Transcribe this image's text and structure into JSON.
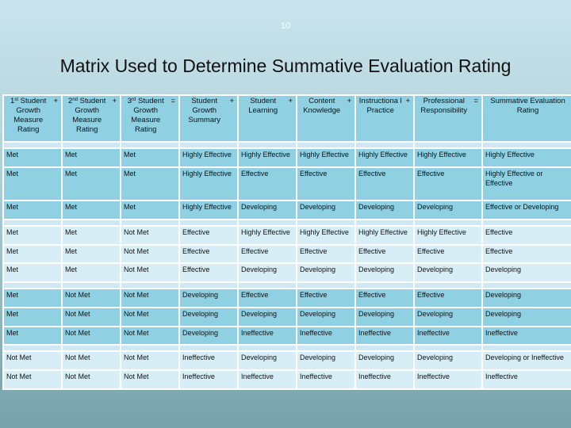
{
  "slide": {
    "number": "10",
    "title": "Matrix Used to Determine Summative Evaluation Rating"
  },
  "headers": [
    {
      "pre": "1",
      "sup": "st",
      "post": " Student Growth Measure Rating",
      "op": "+"
    },
    {
      "pre": "2",
      "sup": "nd",
      "post": " Student Growth Measure Rating",
      "op": "+"
    },
    {
      "pre": "3",
      "sup": "rd",
      "post": " Student Growth Measure Rating",
      "op": "="
    },
    {
      "pre": "Student Growth Summary",
      "sup": "",
      "post": "",
      "op": "+"
    },
    {
      "pre": "Student Learning",
      "sup": "",
      "post": "",
      "op": "+"
    },
    {
      "pre": "Content Knowledge",
      "sup": "",
      "post": "",
      "op": "+"
    },
    {
      "pre": "Instructiona l Practice",
      "sup": "",
      "post": "",
      "op": "+"
    },
    {
      "pre": "Professional Responsibility",
      "sup": "",
      "post": "",
      "op": "="
    },
    {
      "pre": "Summative Evaluation Rating",
      "sup": "",
      "post": "",
      "op": ""
    }
  ],
  "rows": [
    {
      "sep": true
    },
    {
      "shade": "dk",
      "cells": [
        "Met",
        "Met",
        "Met",
        "Highly Effective",
        "Highly Effective",
        "Highly Effective",
        "Highly Effective",
        "Highly Effective",
        "Highly Effective"
      ]
    },
    {
      "shade": "dk",
      "cells": [
        "Met",
        "Met",
        "Met",
        "Highly Effective",
        "Effective",
        "Effective",
        "Effective",
        "Effective",
        "Highly Effective or Effective"
      ]
    },
    {
      "shade": "dk",
      "cells": [
        "Met",
        "Met",
        "Met",
        "Highly Effective",
        "Developing",
        "Developing",
        "Developing",
        "Developing",
        "Effective or Developing"
      ]
    },
    {
      "sep": true
    },
    {
      "shade": "lt",
      "cells": [
        "Met",
        "Met",
        "Not Met",
        "Effective",
        "Highly Effective",
        "Highly Effective",
        "Highly Effective",
        "Highly Effective",
        "Effective"
      ]
    },
    {
      "shade": "lt",
      "cells": [
        "Met",
        "Met",
        "Not Met",
        "Effective",
        "Effective",
        "Effective",
        "Effective",
        "Effective",
        "Effective"
      ]
    },
    {
      "shade": "lt",
      "cells": [
        "Met",
        "Met",
        "Not Met",
        "Effective",
        "Developing",
        "Developing",
        "Developing",
        "Developing",
        "Developing"
      ]
    },
    {
      "sep": true
    },
    {
      "shade": "dk",
      "cells": [
        "Met",
        "Not Met",
        "Not Met",
        "Developing",
        "Effective",
        "Effective",
        "Effective",
        "Effective",
        "Developing"
      ]
    },
    {
      "shade": "dk",
      "cells": [
        "Met",
        "Not Met",
        "Not Met",
        "Developing",
        "Developing",
        "Developing",
        "Developing",
        "Developing",
        "Developing"
      ]
    },
    {
      "shade": "dk",
      "cells": [
        "Met",
        "Not Met",
        "Not Met",
        "Developing",
        "Ineffective",
        "Ineffective",
        "Ineffective",
        "Ineffective",
        "Ineffective"
      ]
    },
    {
      "sep": true
    },
    {
      "shade": "lt",
      "cells": [
        "Not Met",
        "Not Met",
        "Not Met",
        "Ineffective",
        "Developing",
        "Developing",
        "Developing",
        "Developing",
        "Developing or Ineffective"
      ]
    },
    {
      "shade": "lt",
      "cells": [
        "Not Met",
        "Not Met",
        "Not Met",
        "Ineffective",
        "Ineffective",
        "Ineffective",
        "Ineffective",
        "Ineffective",
        "Ineffective"
      ]
    }
  ]
}
